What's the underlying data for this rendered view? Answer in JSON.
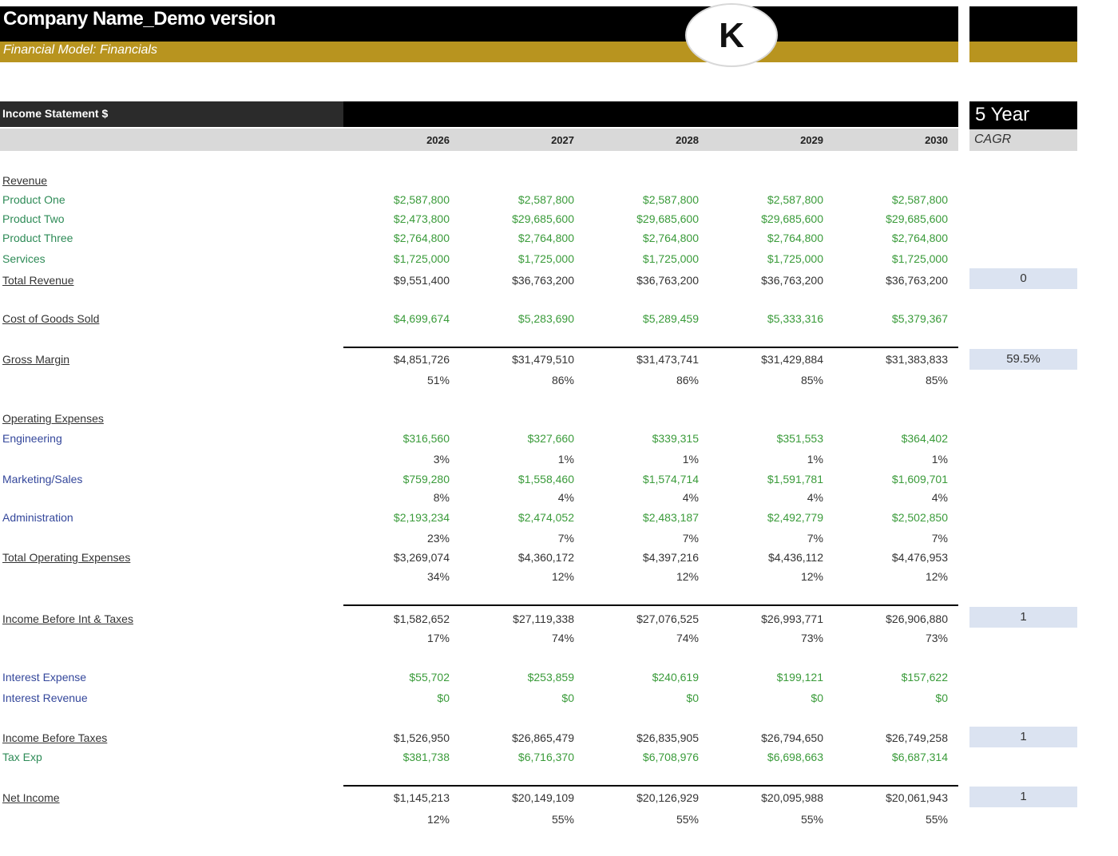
{
  "header": {
    "company": "Company Name_Demo version",
    "subtitle": "Financial Model: Financials",
    "logo_text": "K"
  },
  "section": {
    "title": "Income Statement $",
    "cagr_title": "5 Year",
    "cagr_label": "CAGR"
  },
  "years": [
    "2026",
    "2027",
    "2028",
    "2029",
    "2030"
  ],
  "labels": {
    "revenue": "Revenue",
    "product_one": "Product One",
    "product_two": "Product Two",
    "product_three": "Product Three",
    "services": "Services",
    "total_revenue": "Total Revenue",
    "cogs": "Cost of Goods Sold",
    "gross_margin": "Gross Margin",
    "opex": "Operating Expenses",
    "engineering": "Engineering",
    "marketing": "Marketing/Sales",
    "admin": "Administration",
    "total_opex": "Total Operating Expenses",
    "ebit": "Income Before Int & Taxes",
    "interest_expense": "Interest Expense",
    "interest_revenue": "Interest Revenue",
    "ebt": "Income Before Taxes",
    "tax": "Tax Exp",
    "net_income": "Net Income"
  },
  "rows": {
    "product_one": [
      "$2,587,800",
      "$2,587,800",
      "$2,587,800",
      "$2,587,800",
      "$2,587,800"
    ],
    "product_two": [
      "$2,473,800",
      "$29,685,600",
      "$29,685,600",
      "$29,685,600",
      "$29,685,600"
    ],
    "product_three": [
      "$2,764,800",
      "$2,764,800",
      "$2,764,800",
      "$2,764,800",
      "$2,764,800"
    ],
    "services": [
      "$1,725,000",
      "$1,725,000",
      "$1,725,000",
      "$1,725,000",
      "$1,725,000"
    ],
    "total_revenue": [
      "$9,551,400",
      "$36,763,200",
      "$36,763,200",
      "$36,763,200",
      "$36,763,200"
    ],
    "cogs": [
      "$4,699,674",
      "$5,283,690",
      "$5,289,459",
      "$5,333,316",
      "$5,379,367"
    ],
    "gross_margin": [
      "$4,851,726",
      "$31,479,510",
      "$31,473,741",
      "$31,429,884",
      "$31,383,833"
    ],
    "gross_margin_pct": [
      "51%",
      "86%",
      "86%",
      "85%",
      "85%"
    ],
    "engineering": [
      "$316,560",
      "$327,660",
      "$339,315",
      "$351,553",
      "$364,402"
    ],
    "engineering_pct": [
      "3%",
      "1%",
      "1%",
      "1%",
      "1%"
    ],
    "marketing": [
      "$759,280",
      "$1,558,460",
      "$1,574,714",
      "$1,591,781",
      "$1,609,701"
    ],
    "marketing_pct": [
      "8%",
      "4%",
      "4%",
      "4%",
      "4%"
    ],
    "admin": [
      "$2,193,234",
      "$2,474,052",
      "$2,483,187",
      "$2,492,779",
      "$2,502,850"
    ],
    "admin_pct": [
      "23%",
      "7%",
      "7%",
      "7%",
      "7%"
    ],
    "total_opex": [
      "$3,269,074",
      "$4,360,172",
      "$4,397,216",
      "$4,436,112",
      "$4,476,953"
    ],
    "total_opex_pct": [
      "34%",
      "12%",
      "12%",
      "12%",
      "12%"
    ],
    "ebit": [
      "$1,582,652",
      "$27,119,338",
      "$27,076,525",
      "$26,993,771",
      "$26,906,880"
    ],
    "ebit_pct": [
      "17%",
      "74%",
      "74%",
      "73%",
      "73%"
    ],
    "interest_expense": [
      "$55,702",
      "$253,859",
      "$240,619",
      "$199,121",
      "$157,622"
    ],
    "interest_revenue": [
      "$0",
      "$0",
      "$0",
      "$0",
      "$0"
    ],
    "ebt": [
      "$1,526,950",
      "$26,865,479",
      "$26,835,905",
      "$26,794,650",
      "$26,749,258"
    ],
    "tax": [
      "$381,738",
      "$6,716,370",
      "$6,708,976",
      "$6,698,663",
      "$6,687,314"
    ],
    "net_income": [
      "$1,145,213",
      "$20,149,109",
      "$20,126,929",
      "$20,095,988",
      "$20,061,943"
    ],
    "net_income_pct": [
      "12%",
      "55%",
      "55%",
      "55%",
      "55%"
    ]
  },
  "cagr": {
    "total_revenue": "0",
    "gross_margin": "59.5%",
    "ebit": "1",
    "ebt": "1",
    "net_income": "1"
  },
  "colors": {
    "gold": "#b8941f",
    "black": "#000000",
    "input_green": "#3a9b3a",
    "link_blue": "#34479b",
    "cagr_fill": "#dbe3f1"
  }
}
